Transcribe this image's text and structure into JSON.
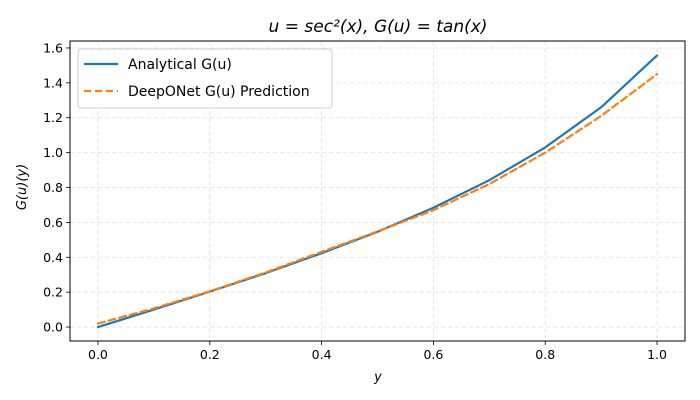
{
  "chart_data": {
    "type": "line",
    "title": "u = sec²(x), G(u) = tan(x)",
    "xlabel": "y",
    "ylabel": "G(u)(y)",
    "xlim": [
      -0.05,
      1.05
    ],
    "ylim": [
      -0.08,
      1.64
    ],
    "x_ticks": [
      0.0,
      0.2,
      0.4,
      0.6,
      0.8,
      1.0
    ],
    "x_tick_labels": [
      "0.0",
      "0.2",
      "0.4",
      "0.6",
      "0.8",
      "1.0"
    ],
    "y_ticks": [
      0.0,
      0.2,
      0.4,
      0.6,
      0.8,
      1.0,
      1.2,
      1.4,
      1.6
    ],
    "y_tick_labels": [
      "0.0",
      "0.2",
      "0.4",
      "0.6",
      "0.8",
      "1.0",
      "1.2",
      "1.4",
      "1.6"
    ],
    "grid": true,
    "legend_position": "top-left",
    "x": [
      0.0,
      0.1,
      0.2,
      0.3,
      0.4,
      0.5,
      0.6,
      0.7,
      0.8,
      0.9,
      1.0
    ],
    "series": [
      {
        "name": "Analytical G(u)",
        "color": "#1f77b4",
        "style": "solid",
        "values": [
          0.0,
          0.1,
          0.203,
          0.309,
          0.423,
          0.546,
          0.684,
          0.842,
          1.03,
          1.26,
          1.557
        ]
      },
      {
        "name": "DeepONet G(u) Prediction",
        "color": "#ff7f0e",
        "style": "dashed",
        "values": [
          0.02,
          0.107,
          0.205,
          0.313,
          0.431,
          0.548,
          0.67,
          0.82,
          1.0,
          1.21,
          1.45
        ]
      }
    ]
  }
}
